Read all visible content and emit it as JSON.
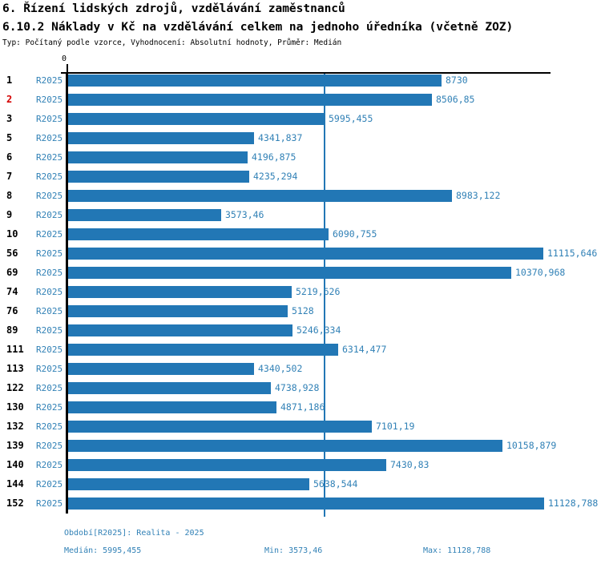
{
  "header": {
    "title_line1": "6. Řízení lidských zdrojů, vzdělávání zaměstnanců",
    "title_line2": "6.10.2 Náklady v Kč na vzdělávání celkem na jednoho úředníka (včetně ZOZ)",
    "subtitle": "Typ: Počítaný podle vzorce, Vyhodnocení: Absolutní hodnoty, Průměr: Medián"
  },
  "colors": {
    "bar_blue": "#2277b5",
    "text_blue": "#3181b6",
    "highlight_red": "#d40000",
    "axis_black": "#000000"
  },
  "chart_data": {
    "type": "bar",
    "orientation": "horizontal",
    "title": "6.10.2 Náklady v Kč na vzdělávání celkem na jednoho úředníka (včetně ZOZ)",
    "series_name": "R2025",
    "x_axis": {
      "zero_label": "0",
      "min": 0,
      "max_value": 11280,
      "gridlines": false
    },
    "median_value": 5995.455,
    "median_line": true,
    "rows": [
      {
        "id": "1",
        "period": "R2025",
        "value": 8730,
        "value_label": "8730",
        "highlighted": false
      },
      {
        "id": "2",
        "period": "R2025",
        "value": 8506.85,
        "value_label": "8506,85",
        "highlighted": true
      },
      {
        "id": "3",
        "period": "R2025",
        "value": 5995.455,
        "value_label": "5995,455",
        "highlighted": false
      },
      {
        "id": "5",
        "period": "R2025",
        "value": 4341.837,
        "value_label": "4341,837",
        "highlighted": false
      },
      {
        "id": "6",
        "period": "R2025",
        "value": 4196.875,
        "value_label": "4196,875",
        "highlighted": false
      },
      {
        "id": "7",
        "period": "R2025",
        "value": 4235.294,
        "value_label": "4235,294",
        "highlighted": false
      },
      {
        "id": "8",
        "period": "R2025",
        "value": 8983.122,
        "value_label": "8983,122",
        "highlighted": false
      },
      {
        "id": "9",
        "period": "R2025",
        "value": 3573.46,
        "value_label": "3573,46",
        "highlighted": false
      },
      {
        "id": "10",
        "period": "R2025",
        "value": 6090.755,
        "value_label": "6090,755",
        "highlighted": false
      },
      {
        "id": "56",
        "period": "R2025",
        "value": 11115.646,
        "value_label": "11115,646",
        "highlighted": false
      },
      {
        "id": "69",
        "period": "R2025",
        "value": 10370.968,
        "value_label": "10370,968",
        "highlighted": false
      },
      {
        "id": "74",
        "period": "R2025",
        "value": 5219.626,
        "value_label": "5219,626",
        "highlighted": false
      },
      {
        "id": "76",
        "period": "R2025",
        "value": 5128,
        "value_label": "5128",
        "highlighted": false
      },
      {
        "id": "89",
        "period": "R2025",
        "value": 5246.334,
        "value_label": "5246,334",
        "highlighted": false
      },
      {
        "id": "111",
        "period": "R2025",
        "value": 6314.477,
        "value_label": "6314,477",
        "highlighted": false
      },
      {
        "id": "113",
        "period": "R2025",
        "value": 4340.502,
        "value_label": "4340,502",
        "highlighted": false
      },
      {
        "id": "122",
        "period": "R2025",
        "value": 4738.928,
        "value_label": "4738,928",
        "highlighted": false
      },
      {
        "id": "130",
        "period": "R2025",
        "value": 4871.186,
        "value_label": "4871,186",
        "highlighted": false
      },
      {
        "id": "132",
        "period": "R2025",
        "value": 7101.19,
        "value_label": "7101,19",
        "highlighted": false
      },
      {
        "id": "139",
        "period": "R2025",
        "value": 10158.879,
        "value_label": "10158,879",
        "highlighted": false
      },
      {
        "id": "140",
        "period": "R2025",
        "value": 7430.83,
        "value_label": "7430,83",
        "highlighted": false
      },
      {
        "id": "144",
        "period": "R2025",
        "value": 5638.544,
        "value_label": "5638,544",
        "highlighted": false
      },
      {
        "id": "152",
        "period": "R2025",
        "value": 11128.788,
        "value_label": "11128,788",
        "highlighted": false
      }
    ]
  },
  "footer": {
    "period_line": "Období[R2025]: Realita - 2025",
    "median_label": "Medián: 5995,455",
    "min_label": "Min: 3573,46",
    "max_label": "Max: 11128,788"
  }
}
